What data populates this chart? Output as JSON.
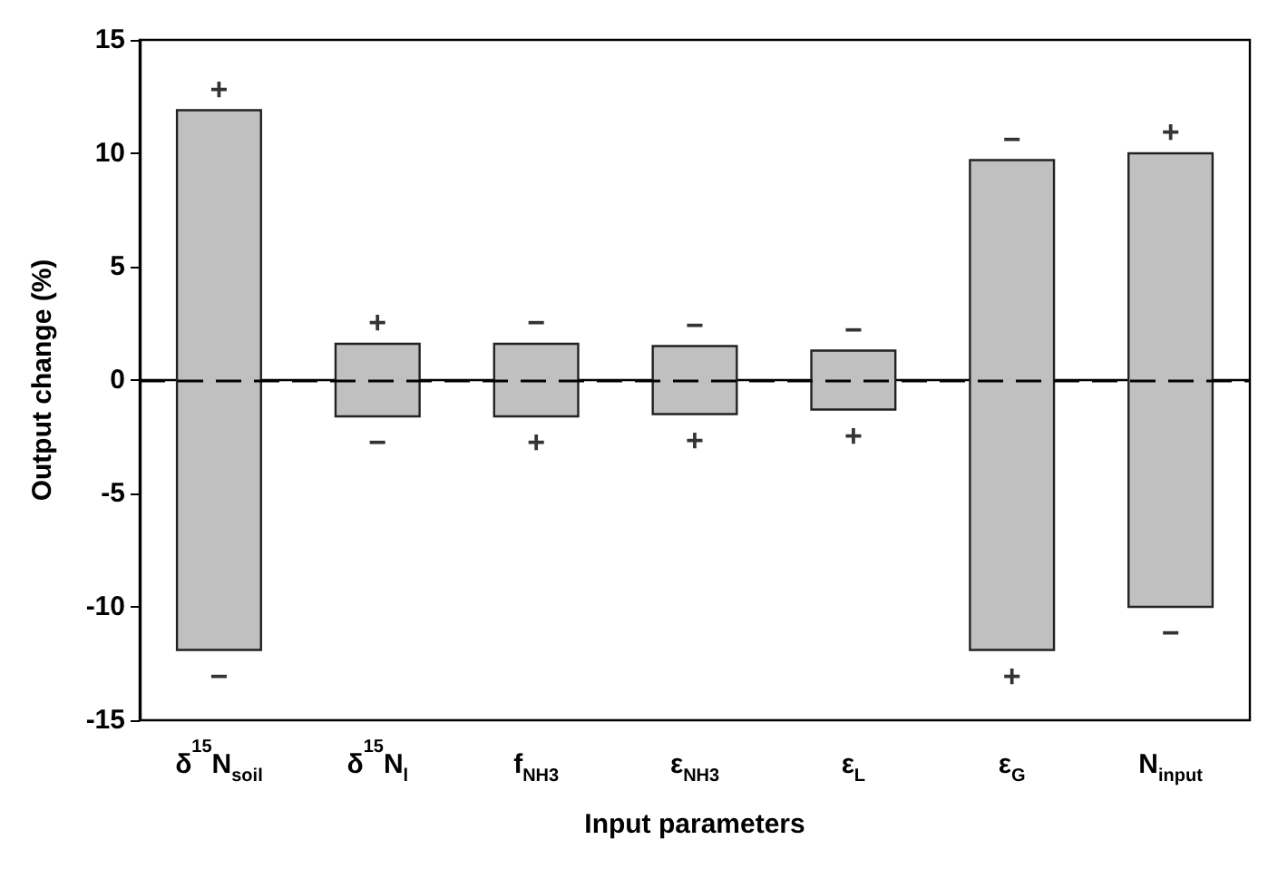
{
  "chart_data": {
    "type": "bar",
    "xlabel": "Input parameters",
    "ylabel": "Output change (%)",
    "categories": [
      "δ$^{15}$N$_{soil}$",
      "δ$^{15}$N$_{l}$",
      "f$_{NH3}$",
      "ε$_{NH3}$",
      "ε$_{L}$",
      "ε$_{G}$",
      "N$_{input}$"
    ],
    "base": [
      -11.9,
      -1.6,
      -1.6,
      -1.5,
      -1.3,
      -11.9,
      -10.0
    ],
    "values": [
      23.8,
      3.2,
      3.2,
      3.0,
      2.6,
      21.6,
      20.0
    ],
    "color": "#c0c0c0",
    "ylim": [
      -15,
      15
    ],
    "yticks": [
      -15,
      -10,
      -5,
      0,
      5,
      10,
      15
    ],
    "grid": false,
    "ref_lines": [
      {
        "axis": "y",
        "value": 0,
        "line_style": "dashed",
        "color": "#000000"
      }
    ],
    "annotations": [
      {
        "text": "+",
        "x": "δ$^{15}$N$_{soil}$",
        "y": 11.9
      },
      {
        "text": "−",
        "x": "δ$^{15}$N$_{soil}$",
        "y": -11.9
      },
      {
        "text": "+",
        "x": "δ$^{15}$N$_{l}$",
        "y": 1.6
      },
      {
        "text": "−",
        "x": "δ$^{15}$N$_{l}$",
        "y": -1.6
      },
      {
        "text": "−",
        "x": "f$_{NH3}$",
        "y": 1.6
      },
      {
        "text": "+",
        "x": "f$_{NH3}$",
        "y": -1.6
      },
      {
        "text": "−",
        "x": "ε$_{NH3}$",
        "y": 1.5
      },
      {
        "text": "+",
        "x": "ε$_{NH3}$",
        "y": -1.5
      },
      {
        "text": "−",
        "x": "ε$_{L}$",
        "y": 1.3
      },
      {
        "text": "+",
        "x": "ε$_{L}$",
        "y": -1.3
      },
      {
        "text": "−",
        "x": "ε$_{G}$",
        "y": 9.7
      },
      {
        "text": "+",
        "x": "ε$_{G}$",
        "y": -11.9
      },
      {
        "text": "+",
        "x": "N$_{input}$",
        "y": 10.0
      },
      {
        "text": "−",
        "x": "N$_{input}$",
        "y": -10.0
      }
    ]
  }
}
